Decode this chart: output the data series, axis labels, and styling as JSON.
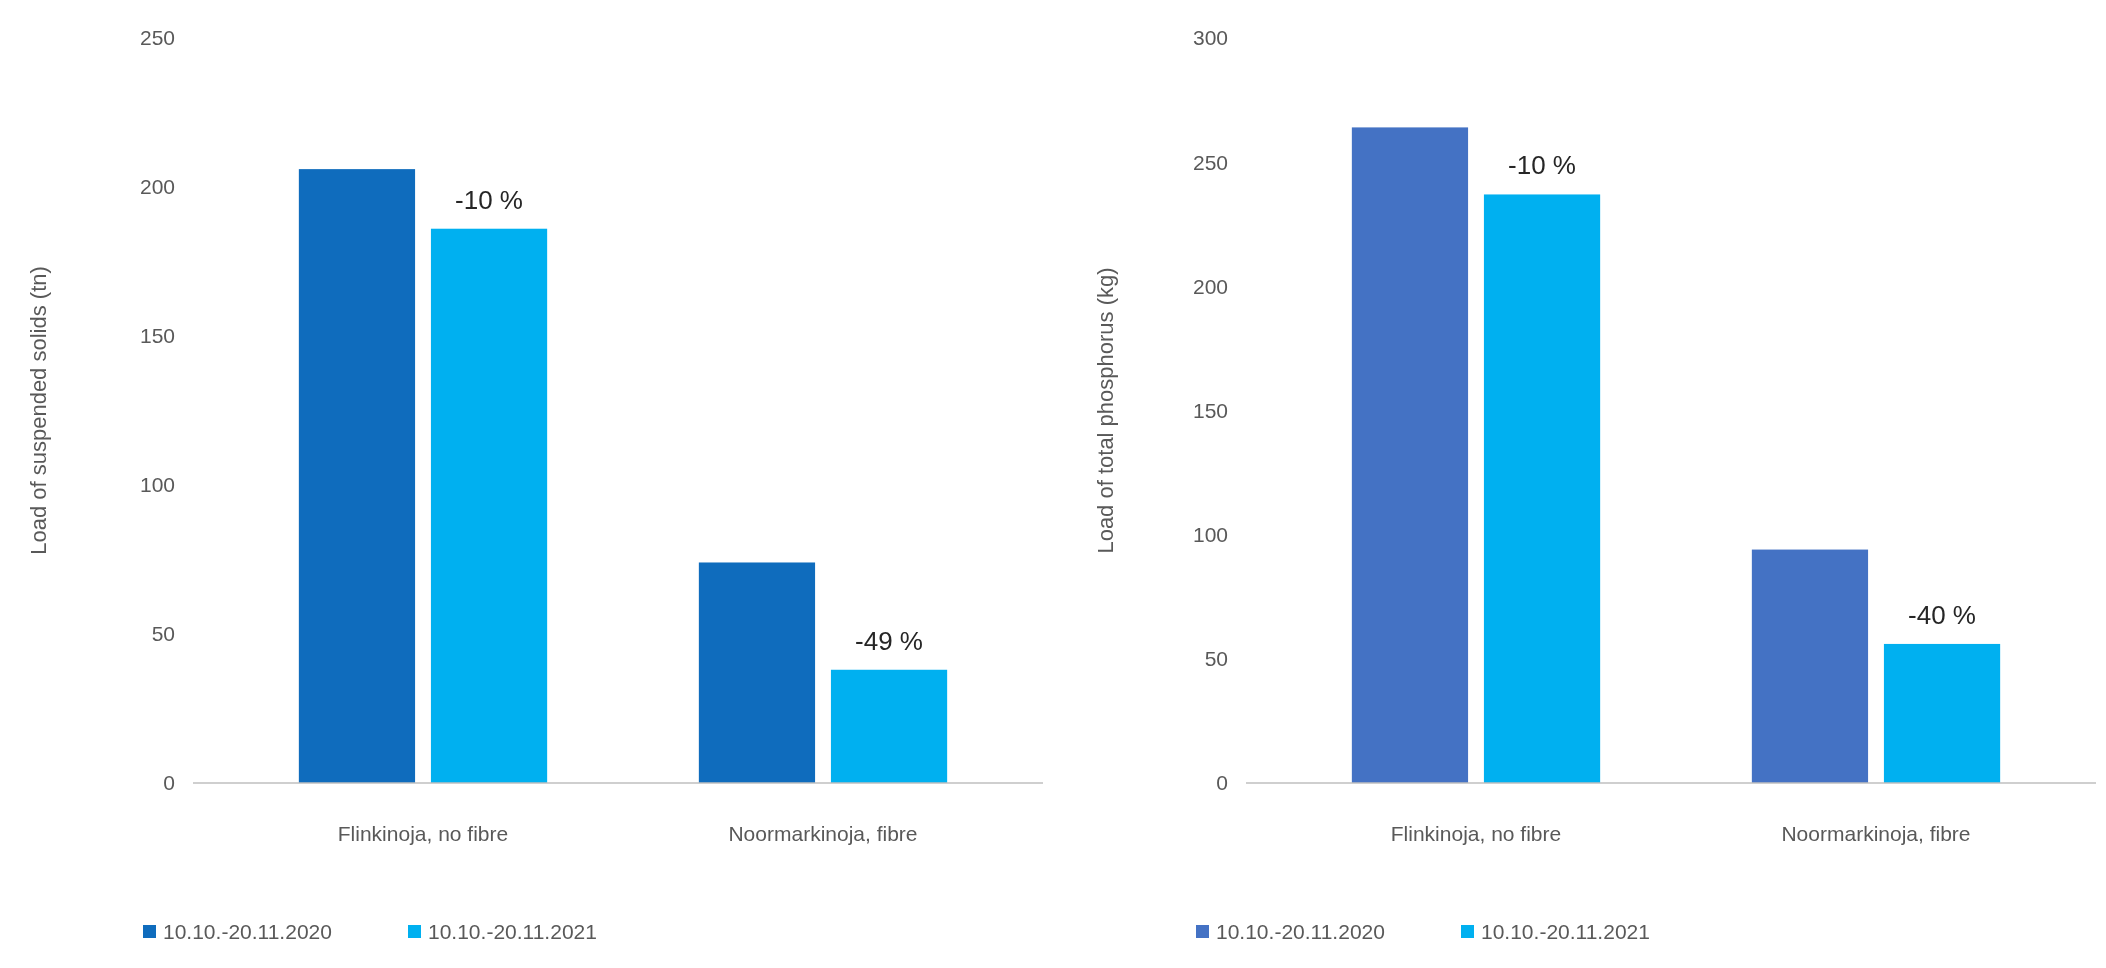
{
  "chart_data": [
    {
      "type": "bar",
      "categories": [
        "Flinkinoja, no fibre",
        "Noormarkinoja, fibre"
      ],
      "ylabel": "Load of suspended solids (tn)",
      "ylim": [
        0,
        250
      ],
      "yticks": [
        0,
        50,
        100,
        150,
        200,
        250
      ],
      "grid": false,
      "legend": "bottom",
      "series": [
        {
          "name": "10.10.-20.11.2020",
          "color": "#0f6cbd",
          "values": [
            206,
            74
          ]
        },
        {
          "name": "10.10.-20.11.2021",
          "color": "#00b0f0",
          "values": [
            186,
            38
          ]
        }
      ],
      "annotations": [
        "-10 %",
        "-49 %"
      ]
    },
    {
      "type": "bar",
      "categories": [
        "Flinkinoja, no fibre",
        "Noormarkinoja, fibre"
      ],
      "ylabel": "Load of total phosphorus (kg)",
      "ylim": [
        0,
        300
      ],
      "yticks": [
        0,
        50,
        100,
        150,
        200,
        250,
        300
      ],
      "grid": false,
      "legend": "bottom",
      "series": [
        {
          "name": "10.10.-20.11.2020",
          "color": "#4472c4",
          "values": [
            264,
            94
          ]
        },
        {
          "name": "10.10.-20.11.2021",
          "color": "#00b0f0",
          "values": [
            237,
            56
          ]
        }
      ],
      "annotations": [
        "-10 %",
        "-40 %"
      ]
    }
  ]
}
